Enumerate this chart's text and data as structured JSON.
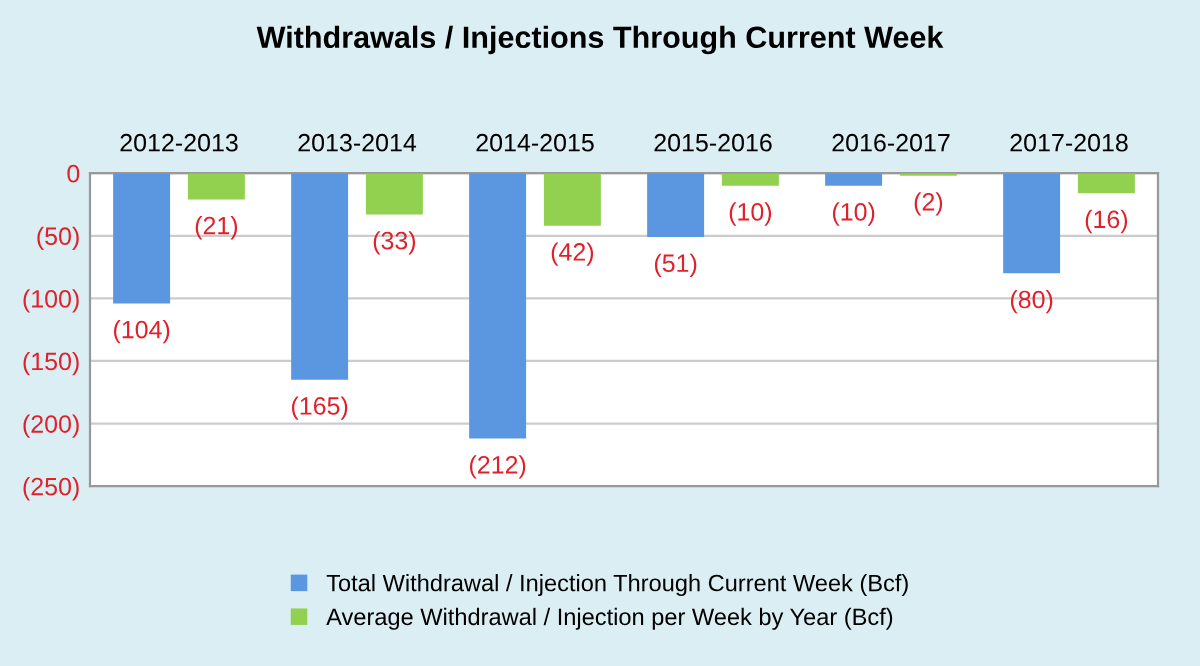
{
  "chart_data": {
    "type": "bar",
    "title": "Withdrawals / Injections Through Current Week",
    "categories": [
      "2012-2013",
      "2013-2014",
      "2014-2015",
      "2015-2016",
      "2016-2017",
      "2017-2018"
    ],
    "series": [
      {
        "name": "Total Withdrawal / Injection Through Current Week (Bcf)",
        "color": "#5b97e0",
        "values": [
          -104,
          -165,
          -212,
          -51,
          -10,
          -80
        ],
        "value_labels": [
          "(104)",
          "(165)",
          "(212)",
          "(51)",
          "(10)",
          "(80)"
        ]
      },
      {
        "name": "Average Withdrawal / Injection per Week by Year (Bcf)",
        "color": "#92d050",
        "values": [
          -21,
          -33,
          -42,
          -10,
          -2,
          -16
        ],
        "value_labels": [
          "(21)",
          "(33)",
          "(42)",
          "(10)",
          "(2)",
          "(16)"
        ]
      }
    ],
    "ylim": [
      -250,
      0
    ],
    "yticks": [
      0,
      {
        "value": -50,
        "label": "(50)"
      },
      {
        "value": -100,
        "label": "(100)"
      },
      {
        "value": -150,
        "label": "(150)"
      },
      {
        "value": -200,
        "label": "(200)"
      },
      {
        "value": -250,
        "label": "(250)"
      }
    ],
    "grid": "y",
    "legend": "bottom"
  }
}
